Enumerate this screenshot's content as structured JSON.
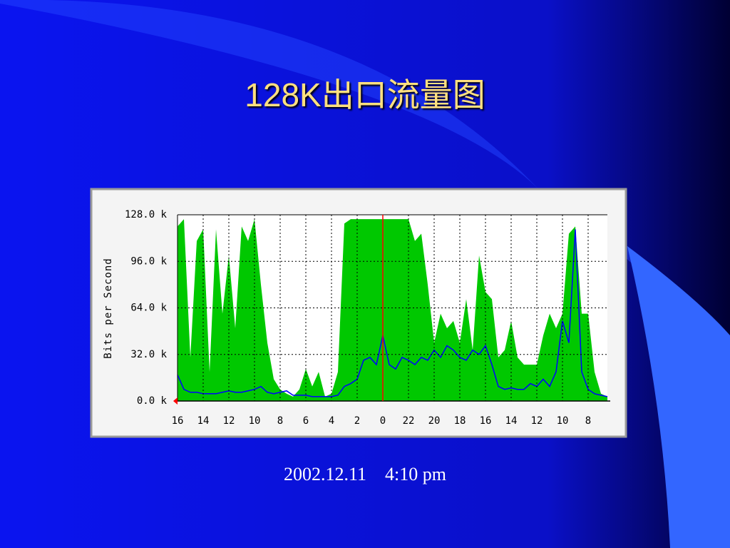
{
  "title": "128K出口流量图",
  "caption": "2002.12.11    4:10 pm",
  "chart_data": {
    "type": "area-line",
    "y_label": "Bits per Second",
    "x": [
      0,
      0.5,
      1,
      1.5,
      2,
      2.5,
      3,
      3.5,
      4,
      4.5,
      5,
      5.5,
      6,
      6.5,
      7,
      7.5,
      8,
      8.5,
      9,
      9.5,
      10,
      10.5,
      11,
      11.5,
      12,
      12.5,
      13,
      13.5,
      14,
      14.5,
      15,
      15.5,
      16,
      16.5,
      17,
      17.5,
      18,
      18.5,
      19,
      19.5,
      20,
      20.5,
      21,
      21.5,
      22,
      22.5,
      23,
      23.5,
      24,
      24.5,
      25,
      25.5,
      26,
      26.5,
      27,
      27.5,
      28,
      28.5,
      29,
      29.5,
      30,
      30.5,
      31,
      31.5,
      32,
      32.5,
      33,
      33.5
    ],
    "series": [
      {
        "color": "#00c800",
        "values": [
          120,
          125,
          30,
          110,
          118,
          20,
          118,
          60,
          100,
          50,
          120,
          110,
          125,
          80,
          40,
          15,
          8,
          5,
          3,
          8,
          22,
          10,
          20,
          3,
          5,
          20,
          122,
          125,
          125,
          125,
          125,
          125,
          125,
          125,
          125,
          125,
          125,
          110,
          115,
          80,
          40,
          60,
          50,
          55,
          40,
          70,
          35,
          100,
          75,
          70,
          30,
          35,
          55,
          30,
          25,
          25,
          25,
          45,
          60,
          50,
          60,
          115,
          120,
          60,
          60,
          20,
          5,
          3
        ]
      },
      {
        "color": "#0000ff",
        "values": [
          18,
          8,
          6,
          6,
          5,
          5,
          5,
          6,
          7,
          6,
          6,
          7,
          8,
          10,
          6,
          5,
          6,
          7,
          4,
          4,
          4,
          3,
          3,
          3,
          3,
          4,
          10,
          12,
          15,
          28,
          30,
          25,
          45,
          25,
          22,
          30,
          28,
          25,
          30,
          28,
          35,
          30,
          38,
          35,
          30,
          28,
          35,
          32,
          38,
          25,
          10,
          8,
          9,
          8,
          8,
          12,
          10,
          15,
          10,
          20,
          55,
          40,
          118,
          20,
          8,
          5,
          4,
          3
        ]
      }
    ],
    "xlim": [
      0,
      33.5
    ],
    "xticks": [
      {
        "value": 0,
        "label": "16"
      },
      {
        "value": 2,
        "label": "14"
      },
      {
        "value": 4,
        "label": "12"
      },
      {
        "value": 6,
        "label": "10"
      },
      {
        "value": 8,
        "label": "8"
      },
      {
        "value": 10,
        "label": "6"
      },
      {
        "value": 12,
        "label": "4"
      },
      {
        "value": 14,
        "label": "2"
      },
      {
        "value": 16,
        "label": "0"
      },
      {
        "value": 18,
        "label": "22"
      },
      {
        "value": 20,
        "label": "20"
      },
      {
        "value": 22,
        "label": "18"
      },
      {
        "value": 24,
        "label": "16"
      },
      {
        "value": 26,
        "label": "14"
      },
      {
        "value": 28,
        "label": "12"
      },
      {
        "value": 30,
        "label": "10"
      },
      {
        "value": 32,
        "label": "8"
      }
    ],
    "ylim": [
      0,
      128
    ],
    "yticks": [
      {
        "value": 0,
        "label": "0.0 k"
      },
      {
        "value": 32,
        "label": "32.0 k"
      },
      {
        "value": 64,
        "label": "64.0 k"
      },
      {
        "value": 96,
        "label": "96.0 k"
      },
      {
        "value": 128,
        "label": "128.0 k"
      }
    ],
    "grid": true,
    "marker": 16
  }
}
